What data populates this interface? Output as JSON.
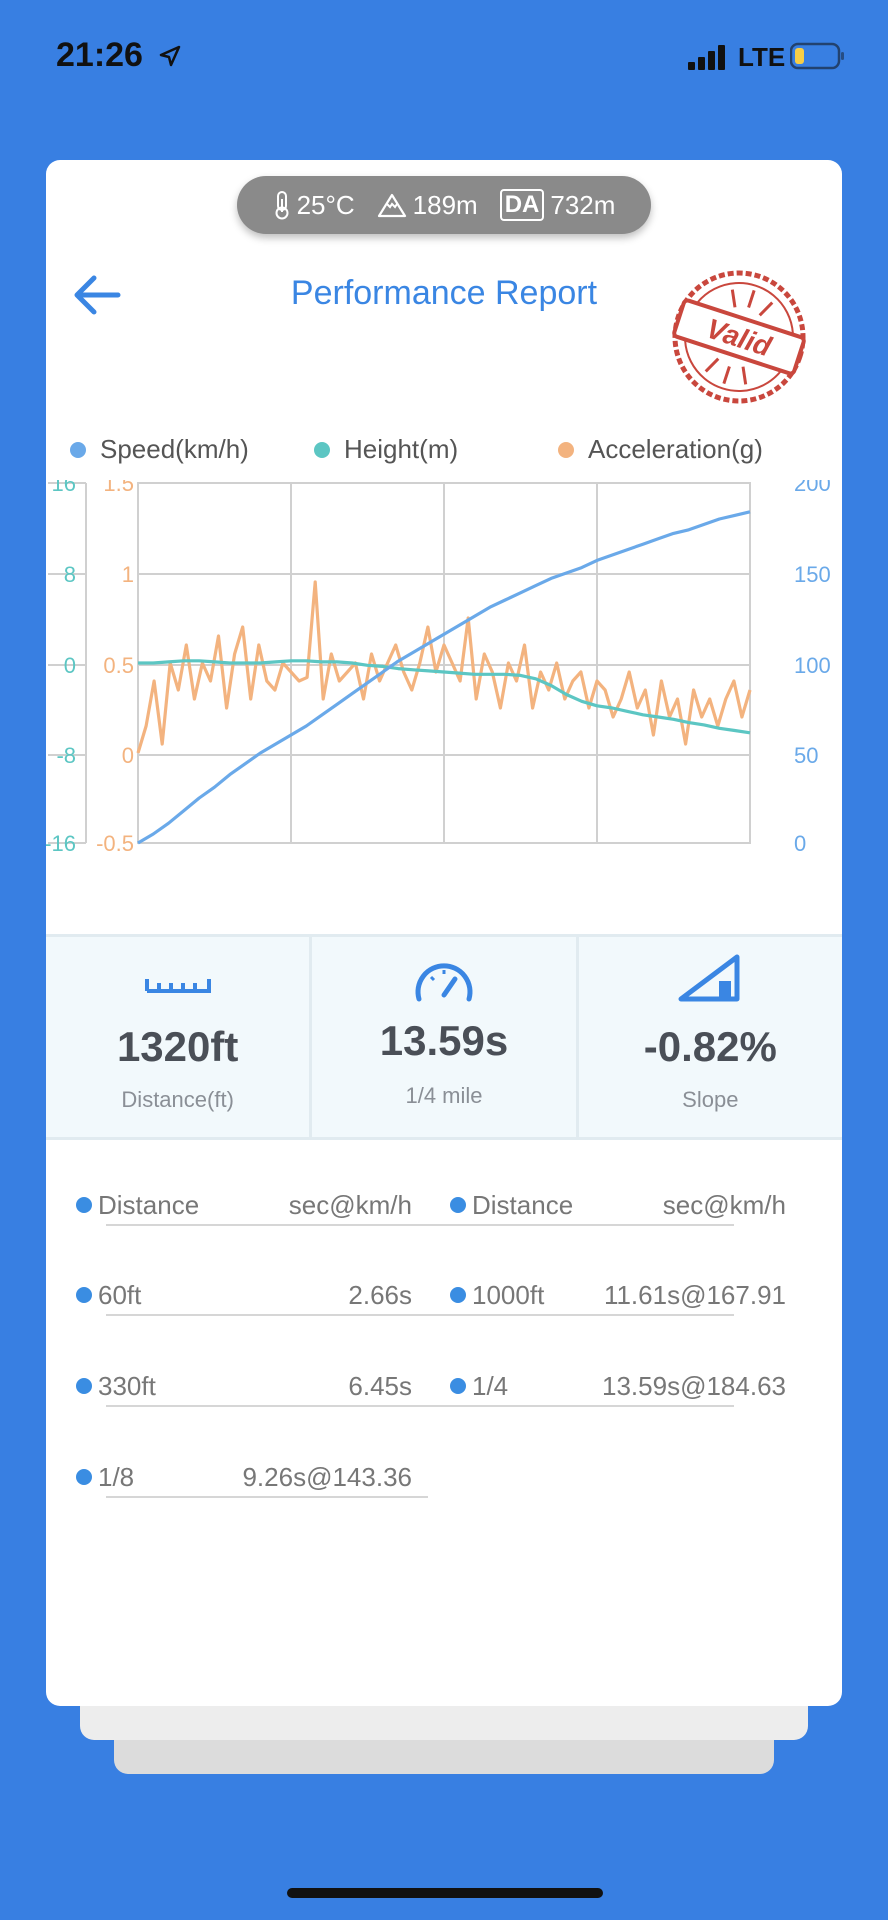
{
  "status_bar": {
    "time": "21:26",
    "network": "LTE"
  },
  "weather": {
    "temperature": "25°C",
    "altitude": "189m",
    "da_label": "DA",
    "density_altitude": "732m"
  },
  "header": {
    "title": "Performance Report",
    "stamp_text": "Valid"
  },
  "colors": {
    "speed": "#6AA9E9",
    "height": "#5CC6C3",
    "acceleration": "#F3B37F",
    "accent": "#3A86E3",
    "background": "#387FE2"
  },
  "chart_data": {
    "type": "line",
    "legend": [
      "Speed(km/h)",
      "Height(m)",
      "Acceleration(g)"
    ],
    "axes": {
      "height_ticks": [
        "16",
        "8",
        "0",
        "-8",
        "-16"
      ],
      "accel_ticks": [
        "1.5",
        "1",
        "0.5",
        "0",
        "-0.5"
      ],
      "speed_ticks": [
        "200",
        "150",
        "100",
        "50",
        "0"
      ],
      "height_range": [
        -16,
        16
      ],
      "accel_range": [
        -0.5,
        1.5
      ],
      "speed_range": [
        0,
        200
      ]
    },
    "grid": true,
    "series": [
      {
        "name": "Speed(km/h)",
        "axis": "speed",
        "values": [
          0,
          5,
          11,
          18,
          25,
          31,
          38,
          44,
          50,
          55,
          60,
          65,
          71,
          77,
          83,
          89,
          95,
          101,
          106,
          111,
          116,
          121,
          126,
          131,
          135,
          139,
          143,
          147,
          150,
          153,
          157,
          160,
          163,
          166,
          169,
          172,
          174,
          177,
          180,
          182,
          184
        ]
      },
      {
        "name": "Height(m)",
        "axis": "height",
        "values": [
          0,
          0,
          0.1,
          0.2,
          0.2,
          0.1,
          0,
          0,
          0,
          0.1,
          0.2,
          0.2,
          0.1,
          0.1,
          0,
          -0.2,
          -0.3,
          -0.5,
          -0.6,
          -0.7,
          -0.8,
          -0.9,
          -1,
          -1,
          -1,
          -1.1,
          -1.4,
          -2,
          -2.8,
          -3.4,
          -3.8,
          -4,
          -4.3,
          -4.6,
          -4.8,
          -5,
          -5.3,
          -5.5,
          -5.8,
          -6,
          -6.2
        ]
      },
      {
        "name": "Acceleration(g)",
        "axis": "accel",
        "values": [
          0,
          0.15,
          0.4,
          0.05,
          0.5,
          0.35,
          0.6,
          0.3,
          0.5,
          0.4,
          0.65,
          0.25,
          0.55,
          0.7,
          0.3,
          0.6,
          0.4,
          0.35,
          0.5,
          0.45,
          0.4,
          0.42,
          0.95,
          0.3,
          0.55,
          0.4,
          0.45,
          0.5,
          0.3,
          0.55,
          0.4,
          0.5,
          0.6,
          0.45,
          0.35,
          0.5,
          0.7,
          0.45,
          0.6,
          0.5,
          0.4,
          0.75,
          0.3,
          0.55,
          0.45,
          0.25,
          0.5,
          0.4,
          0.6,
          0.25,
          0.45,
          0.35,
          0.5,
          0.3,
          0.4,
          0.45,
          0.25,
          0.4,
          0.35,
          0.2,
          0.3,
          0.45,
          0.25,
          0.35,
          0.1,
          0.4,
          0.2,
          0.3,
          0.05,
          0.35,
          0.2,
          0.3,
          0.15,
          0.3,
          0.4,
          0.2,
          0.35
        ]
      }
    ]
  },
  "stats": [
    {
      "value": "1320ft",
      "label": "Distance(ft)",
      "icon": "ruler-icon"
    },
    {
      "value": "13.59s",
      "label": "1/4 mile",
      "icon": "speedometer-icon"
    },
    {
      "value": "-0.82%",
      "label": "Slope",
      "icon": "slope-icon"
    }
  ],
  "splits": {
    "header": {
      "name": "Distance",
      "value": "sec@km/h"
    },
    "left": [
      {
        "name": "60ft",
        "value": "2.66s"
      },
      {
        "name": "330ft",
        "value": "6.45s"
      },
      {
        "name": "1/8",
        "value": "9.26s@143.36"
      }
    ],
    "right": [
      {
        "name": "1000ft",
        "value": "11.61s@167.91"
      },
      {
        "name": "1/4",
        "value": "13.59s@184.63"
      }
    ]
  }
}
